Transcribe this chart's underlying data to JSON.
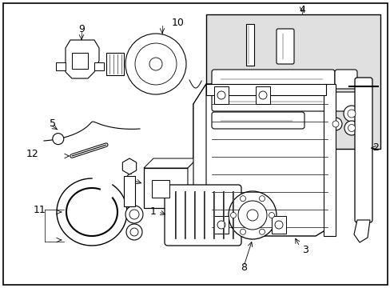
{
  "bg_color": "#ffffff",
  "line_color": "#000000",
  "box4_color": "#e0e0e0",
  "figsize": [
    4.89,
    3.6
  ],
  "dpi": 100
}
